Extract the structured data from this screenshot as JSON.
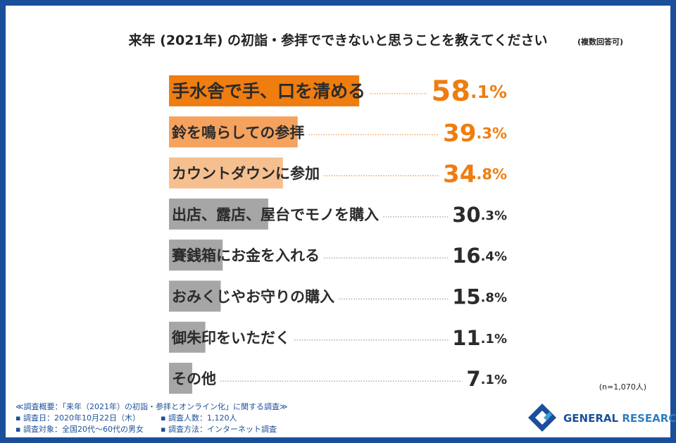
{
  "chart_data": {
    "type": "bar",
    "orientation": "horizontal",
    "title": "来年 (2021年) の初詣・参拝でできないと思うことを教えてください",
    "subtitle": "(複数回答可)",
    "categories": [
      "手水舎で手、口を清める",
      "鈴を鳴らしての参拝",
      "カウントダウンに参加",
      "出店、露店、屋台でモノを購入",
      "賽銭箱にお金を入れる",
      "おみくじやお守りの購入",
      "御朱印をいただく",
      "その他"
    ],
    "values": [
      58.1,
      39.3,
      34.8,
      30.3,
      16.4,
      15.8,
      11.1,
      7.1
    ],
    "value_labels": [
      "58.1%",
      "39.3%",
      "34.8%",
      "30.3%",
      "16.4%",
      "15.8%",
      "11.1%",
      "7.1%"
    ],
    "colors": [
      "#ef7d0f",
      "#f4a25e",
      "#f6bf8f",
      "#a6a6a6",
      "#a6a6a6",
      "#a6a6a6",
      "#a6a6a6",
      "#a6a6a6"
    ],
    "sample_note": "(n=1,070人)"
  },
  "footer": {
    "heading": "≪調査概要：「来年（2021年）の初詣・参拝とオンライン化」に関する調査≫",
    "items": [
      "▪ 調査日：2020年10月22日（木）",
      "▪ 調査人数：1,120人",
      "▪ 調査対象：全国20代〜60代の男女",
      "▪ 調査方法：インターネット調査"
    ]
  },
  "logo": {
    "first": "GENERAL",
    "second": "RESEARCH"
  }
}
